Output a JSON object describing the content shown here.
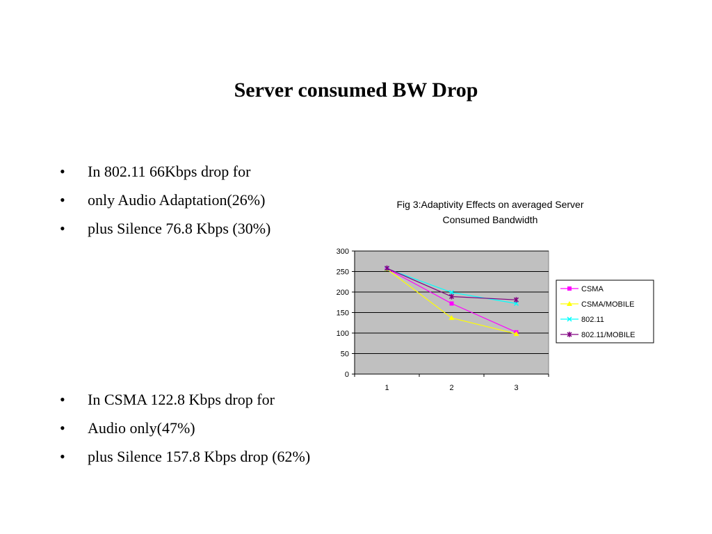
{
  "slide": {
    "title": "Server consumed BW Drop",
    "bullets_top": [
      "In 802.11 66Kbps drop for",
      "only Audio Adaptation(26%)",
      "plus Silence 76.8 Kbps (30%)"
    ],
    "bullets_bottom": [
      "In CSMA 122.8 Kbps drop for",
      "Audio only(47%)",
      "plus Silence 157.8 Kbps drop (62%)"
    ],
    "bullet_glyph": "•"
  },
  "chart_data": {
    "type": "line",
    "title_lines": [
      "Fig 3:Adaptivity Effects on averaged Server",
      "Consumed Bandwidth"
    ],
    "categories": [
      "1",
      "2",
      "3"
    ],
    "ylim": [
      0,
      300
    ],
    "yticks": [
      0,
      50,
      100,
      150,
      200,
      250,
      300
    ],
    "grid": true,
    "plot_background": "#c0c0c0",
    "legend_position": "right",
    "series": [
      {
        "name": "CSMA",
        "values": [
          257,
          172,
          102
        ],
        "color": "#ff00ff",
        "marker": "square"
      },
      {
        "name": "CSMA/MOBILE",
        "values": [
          256,
          137,
          98
        ],
        "color": "#ffff00",
        "marker": "triangle"
      },
      {
        "name": "802.11",
        "values": [
          257,
          199,
          172
        ],
        "color": "#00ffff",
        "marker": "x"
      },
      {
        "name": "802.11/MOBILE",
        "values": [
          258,
          189,
          181
        ],
        "color": "#800080",
        "marker": "star"
      }
    ]
  }
}
